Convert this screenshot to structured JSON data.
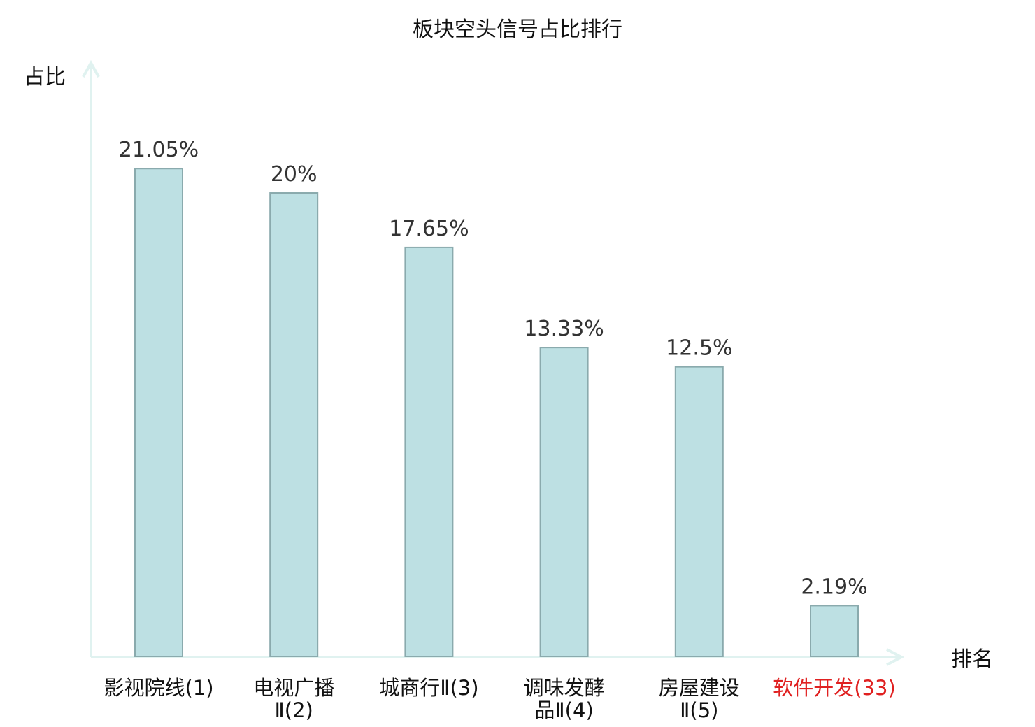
{
  "chart_data": {
    "type": "bar",
    "title": "板块空头信号占比排行",
    "ylabel": "占比",
    "xlabel": "排名",
    "unit": "%",
    "categories": [
      [
        "影视院线(1)"
      ],
      [
        "电视广播",
        "Ⅱ(2)"
      ],
      [
        "城商行Ⅱ(3)"
      ],
      [
        "调味发酵",
        "品Ⅱ(4)"
      ],
      [
        "房屋建设",
        "Ⅱ(5)"
      ],
      [
        "软件开发(33)"
      ]
    ],
    "values": [
      21.05,
      20,
      17.65,
      13.33,
      12.5,
      2.19
    ],
    "highlight_index": 5,
    "ylim": [
      0,
      23.5
    ],
    "grid": false,
    "colors": {
      "bar_fill": "#bde0e3",
      "bar_stroke": "#8aaaad",
      "axis": "#e0f2f0",
      "label_text": "#333333",
      "category_text": "#111111",
      "highlight_text": "#e02020"
    }
  }
}
